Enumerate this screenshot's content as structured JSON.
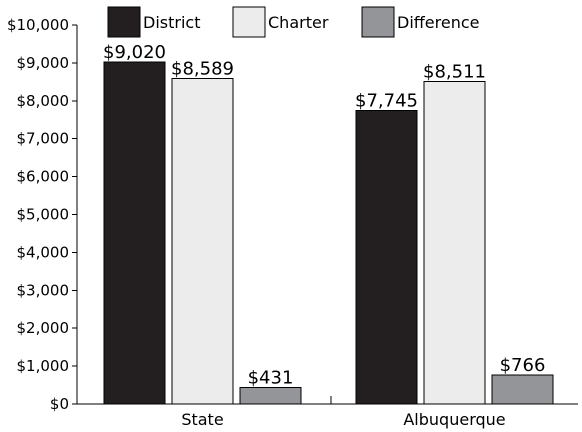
{
  "chart_data": {
    "type": "bar",
    "categories": [
      "State",
      "Albuquerque"
    ],
    "series": [
      {
        "name": "District",
        "values": [
          9020,
          7745
        ],
        "labels": [
          "$9,020",
          "$7,745"
        ],
        "color": "#231f20"
      },
      {
        "name": "Charter",
        "values": [
          8589,
          8511
        ],
        "labels": [
          "$8,589",
          "$8,511"
        ],
        "color": "#ececec"
      },
      {
        "name": "Difference",
        "values": [
          431,
          766
        ],
        "labels": [
          "$431",
          "$766"
        ],
        "color": "#939598"
      }
    ],
    "ylim": [
      0,
      10000
    ],
    "yticks": [
      0,
      1000,
      2000,
      3000,
      4000,
      5000,
      6000,
      7000,
      8000,
      9000,
      10000
    ],
    "ytick_labels": [
      "$0",
      "$1,000",
      "$2,000",
      "$3,000",
      "$4,000",
      "$5,000",
      "$6,000",
      "$7,000",
      "$8,000",
      "$9,000",
      "$10,000"
    ],
    "title": "",
    "xlabel": "",
    "ylabel": "",
    "grid": false,
    "legend_position": "top"
  }
}
